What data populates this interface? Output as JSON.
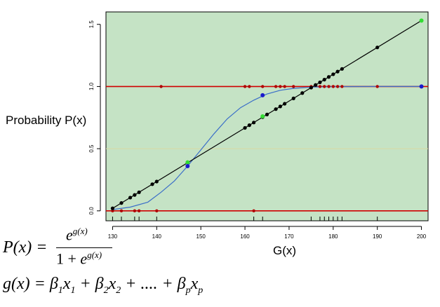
{
  "chart_data": {
    "type": "scatter",
    "xlabel": "G(x)",
    "ylabel": "Probability P(x)",
    "xlim": [
      128.5,
      201.5
    ],
    "ylim": [
      -0.08,
      1.6
    ],
    "x_ticks": [
      "130",
      "140",
      "150",
      "160",
      "170",
      "180",
      "190",
      "200"
    ],
    "y_ticks": [
      "0.0",
      "0.5",
      "1.0",
      "1.5"
    ],
    "background_color": "#c5e3c5",
    "reference_lines": [
      {
        "y": 0.0,
        "color": "#d00000"
      },
      {
        "y": 1.0,
        "color": "#d00000"
      },
      {
        "y": 0.5,
        "color": "#d9d9a0"
      }
    ],
    "outcome_points": {
      "color": "#b00000",
      "y0_x": [
        130,
        132,
        135,
        136,
        140,
        162
      ],
      "y1_x": [
        141,
        160,
        161,
        164,
        167,
        168,
        169,
        171,
        175,
        177,
        178,
        179,
        180,
        181,
        182,
        190
      ]
    },
    "linear_fit": {
      "color": "#000000",
      "x": [
        130,
        200
      ],
      "y": [
        0.02,
        1.53
      ],
      "points_x": [
        130,
        132,
        134,
        135,
        136,
        139,
        140,
        160,
        161,
        162,
        164,
        165,
        167,
        168,
        169,
        171,
        173,
        175,
        176,
        177,
        178,
        179,
        180,
        181,
        182,
        190
      ]
    },
    "logistic_curve": {
      "color": "#3a6ec8",
      "x": [
        130,
        134,
        138,
        141,
        144,
        147,
        150,
        153,
        156,
        159,
        162,
        165,
        168,
        171,
        175,
        180,
        190,
        200
      ],
      "y": [
        0.01,
        0.03,
        0.07,
        0.15,
        0.24,
        0.36,
        0.49,
        0.62,
        0.74,
        0.83,
        0.89,
        0.94,
        0.97,
        0.985,
        0.995,
        0.999,
        1.0,
        1.0
      ]
    },
    "highlight_points": [
      {
        "x": 147,
        "y": 0.39,
        "color": "#33dd33"
      },
      {
        "x": 164,
        "y": 0.76,
        "color": "#33dd33"
      },
      {
        "x": 200,
        "y": 1.53,
        "color": "#33dd33"
      },
      {
        "x": 147,
        "y": 0.36,
        "color": "#1a1acc"
      },
      {
        "x": 164,
        "y": 0.93,
        "color": "#1a1acc"
      },
      {
        "x": 200,
        "y": 1.0,
        "color": "#1a1acc"
      }
    ],
    "rug_x": [
      130,
      132,
      135,
      136,
      140,
      162,
      164,
      175,
      177,
      178,
      179,
      180,
      181,
      182,
      190
    ]
  },
  "formula": {
    "p_lhs": "P(x) =",
    "p_num_base": "e",
    "p_num_exp": "g(x)",
    "p_den_one": "1 + ",
    "p_den_base": "e",
    "p_den_exp": "g(x)",
    "g_lhs": "g(x) = ",
    "beta": "β",
    "x": "x",
    "sub1": "1",
    "sub2": "2",
    "subp": "p",
    "plus": " + ",
    "dots": " + .... + "
  }
}
